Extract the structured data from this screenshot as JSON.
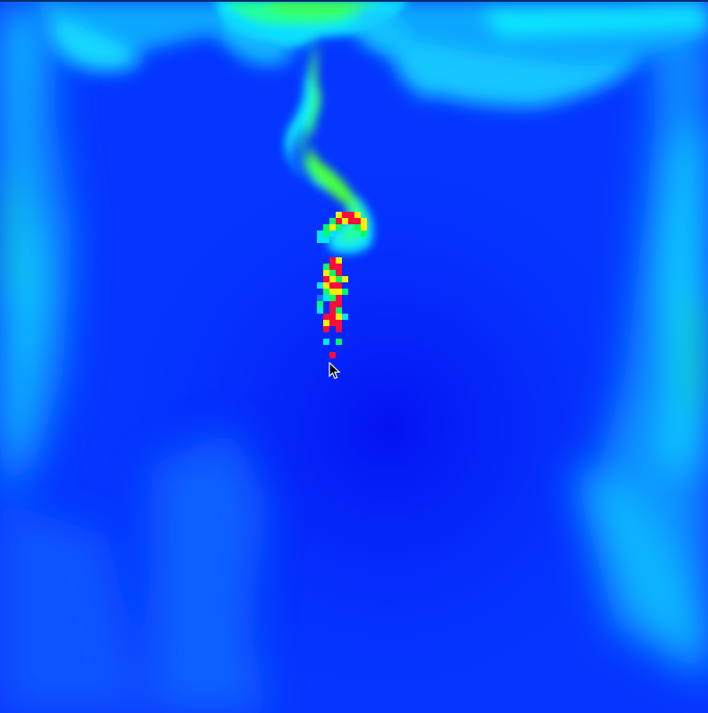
{
  "app": {
    "type": "fluid-simulation"
  },
  "colors": {
    "background": "#0536ff",
    "deep": "#0418f0",
    "mid": "#0a7dff",
    "cyan": "#00e6ff",
    "green": "#00ff66",
    "yellow": "#ffee00",
    "red": "#ff0a3c"
  },
  "cursor": {
    "icon": "arrow-cursor-icon"
  }
}
